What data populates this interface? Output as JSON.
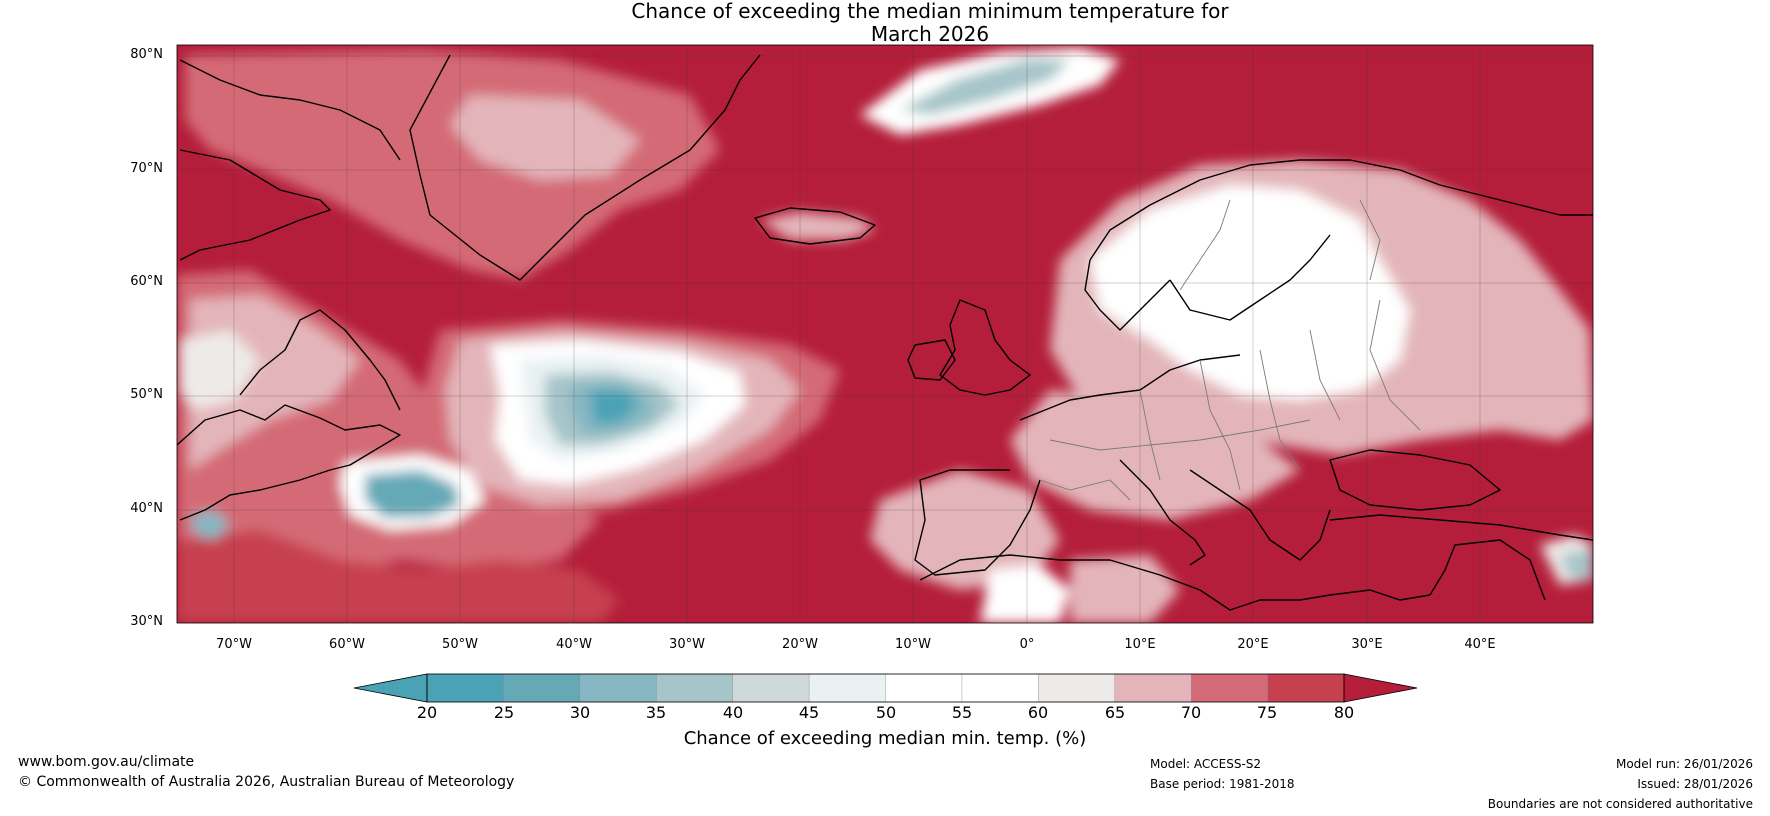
{
  "title": {
    "line1": "Chance of exceeding the median minimum temperature for",
    "line2": "March 2026"
  },
  "map": {
    "lat_labels": [
      "80°N",
      "70°N",
      "60°N",
      "50°N",
      "40°N",
      "30°N"
    ],
    "lon_labels": [
      "70°W",
      "60°W",
      "50°W",
      "40°W",
      "30°W",
      "20°W",
      "10°W",
      "0°",
      "10°E",
      "20°E",
      "30°E",
      "40°E"
    ],
    "lat_range": [
      30,
      81
    ],
    "lon_range": [
      -75,
      50
    ],
    "colors": {
      "c80": "#b41e3a",
      "c75": "#c7404f",
      "c70": "#d46b76",
      "c65": "#e3b5ba",
      "c60": "#eeeae8",
      "c55": "#ffffff",
      "c50": "#ffffff",
      "c45": "#e9f1f3",
      "c40": "#cfd9da",
      "c35": "#a6c5c9",
      "c30": "#86b7c2",
      "c25": "#65a9b7",
      "c20": "#4aa3b5"
    }
  },
  "colorbar": {
    "ticks": [
      "20",
      "25",
      "30",
      "35",
      "40",
      "45",
      "50",
      "55",
      "60",
      "65",
      "70",
      "75",
      "80"
    ],
    "colors": [
      "#4aa3b5",
      "#65a9b7",
      "#86b7c2",
      "#a6c5c9",
      "#cfd9da",
      "#e9f1f3",
      "#ffffff",
      "#ffffff",
      "#eeeae8",
      "#e3b5ba",
      "#d46b76",
      "#c7404f",
      "#b41e3a"
    ],
    "label": "Chance of exceeding median min. temp. (%)"
  },
  "footer": {
    "website": "www.bom.gov.au/climate",
    "copyright": "© Commonwealth of Australia 2026, Australian Bureau of Meteorology",
    "model": "Model: ACCESS-S2",
    "base_period": "Base period: 1981-2018",
    "model_run": "Model run: 26/01/2026",
    "issued": "Issued: 28/01/2026",
    "disclaimer": "Boundaries are not considered authoritative"
  }
}
